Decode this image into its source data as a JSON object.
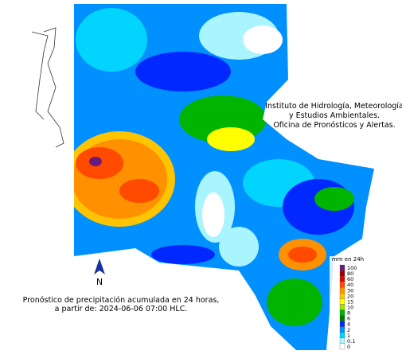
{
  "institute": {
    "lines": [
      "Instituto de Hidrología, Meteorología",
      "y Estudios Ambientales.",
      "Oficina de Pronósticos y Alertas."
    ]
  },
  "caption": {
    "lines": [
      "Pronóstico de precipitación acumulada en 24 horas,",
      "a partir de: 2024-06-06 07:00 HLC."
    ]
  },
  "north": "N",
  "legend": {
    "title": "mm en 24h",
    "items": [
      {
        "label": "100",
        "color": "#6a1b7a"
      },
      {
        "label": "80",
        "color": "#9a0000"
      },
      {
        "label": "60",
        "color": "#e00000"
      },
      {
        "label": "40",
        "color": "#ff4a00"
      },
      {
        "label": "30",
        "color": "#ff9000"
      },
      {
        "label": "20",
        "color": "#ffc400"
      },
      {
        "label": "15",
        "color": "#ffff00"
      },
      {
        "label": "10",
        "color": "#a8e000"
      },
      {
        "label": "8",
        "color": "#00b400"
      },
      {
        "label": "6",
        "color": "#007a00"
      },
      {
        "label": "4",
        "color": "#0028ff"
      },
      {
        "label": "2",
        "color": "#0090ff"
      },
      {
        "label": "1",
        "color": "#00d4ff"
      },
      {
        "label": "0.1",
        "color": "#a8f4ff"
      },
      {
        "label": "0",
        "color": "#ffffff"
      }
    ]
  }
}
